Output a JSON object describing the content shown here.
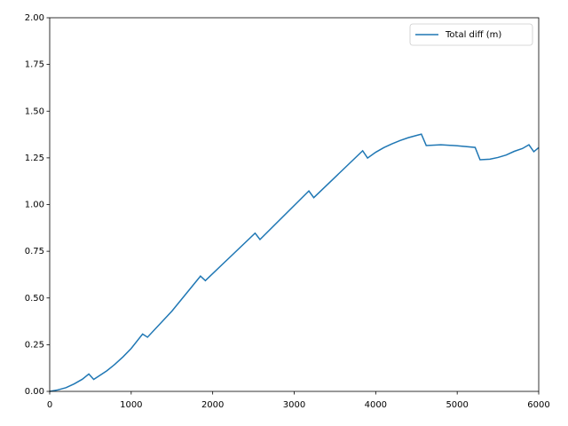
{
  "chart_data": {
    "type": "line",
    "x": [
      0,
      100,
      200,
      300,
      400,
      480,
      540,
      700,
      800,
      900,
      1000,
      1140,
      1200,
      1500,
      1850,
      1910,
      2520,
      2580,
      3180,
      3240,
      3840,
      3900,
      4000,
      4100,
      4200,
      4300,
      4400,
      4500,
      4560,
      4620,
      4800,
      5000,
      5220,
      5280,
      5400,
      5500,
      5600,
      5700,
      5800,
      5880,
      5940,
      6000
    ],
    "series": [
      {
        "name": "Total diff (m)",
        "color": "#1f77b4",
        "values": [
          0,
          0.008,
          0.02,
          0.04,
          0.065,
          0.093,
          0.064,
          0.11,
          0.145,
          0.185,
          0.23,
          0.307,
          0.29,
          0.43,
          0.617,
          0.593,
          0.847,
          0.813,
          1.073,
          1.037,
          1.288,
          1.249,
          1.28,
          1.305,
          1.325,
          1.343,
          1.358,
          1.37,
          1.377,
          1.316,
          1.32,
          1.315,
          1.306,
          1.24,
          1.243,
          1.252,
          1.265,
          1.285,
          1.3,
          1.32,
          1.283,
          1.305
        ]
      }
    ],
    "xlim": [
      0,
      6000
    ],
    "xticks": [
      0,
      1000,
      2000,
      3000,
      4000,
      5000,
      6000
    ],
    "ylim": [
      0,
      2
    ],
    "yticks": [
      {
        "value": 0,
        "label": "0.00"
      },
      {
        "value": 0.25,
        "label": "0.25"
      },
      {
        "value": 0.5,
        "label": "0.50"
      },
      {
        "value": 0.75,
        "label": "0.75"
      },
      {
        "value": 1,
        "label": "1.00"
      },
      {
        "value": 1.25,
        "label": "1.25"
      },
      {
        "value": 1.5,
        "label": "1.50"
      },
      {
        "value": 1.75,
        "label": "1.75"
      },
      {
        "value": 2,
        "label": "2.00"
      }
    ],
    "legend": "upper right"
  }
}
